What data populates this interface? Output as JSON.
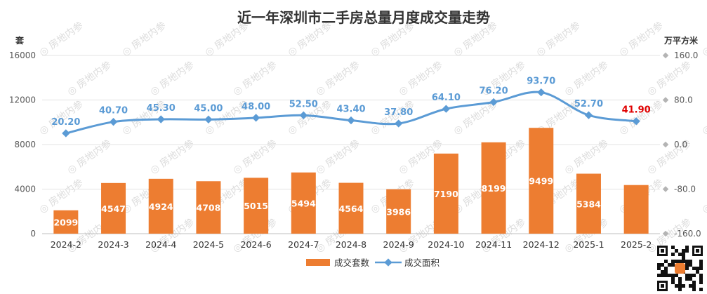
{
  "chart_data": {
    "type": "bar+line",
    "title": "近一年深圳市二手房总量月度成交量走势",
    "left_axis_unit": "套",
    "right_axis_unit": "万平方米",
    "categories": [
      "2024-2",
      "2024-3",
      "2024-4",
      "2024-5",
      "2024-6",
      "2024-7",
      "2024-8",
      "2024-9",
      "2024-10",
      "2024-11",
      "2024-12",
      "2025-1",
      "2025-2"
    ],
    "left_ylim": [
      0,
      16000
    ],
    "left_ticks": [
      "0",
      "4000",
      "8000",
      "12000",
      "16000"
    ],
    "right_ylim": [
      -160,
      160
    ],
    "right_ticks": [
      "-160.0",
      "-80.0",
      "0.0",
      "80.0",
      "160.0"
    ],
    "series": [
      {
        "name": "成交套数",
        "kind": "bar",
        "axis": "left",
        "color": "#ED7D31",
        "values": [
          2099,
          4547,
          4924,
          4708,
          5015,
          5494,
          4564,
          3986,
          7190,
          8199,
          9499,
          5384,
          4365
        ],
        "labels": [
          "2099",
          "4547",
          "4924",
          "4708",
          "5015",
          "5494",
          "4564",
          "3986",
          "7190",
          "8199",
          "9499",
          "5384",
          "4365"
        ]
      },
      {
        "name": "成交面积",
        "kind": "line",
        "axis": "right",
        "color": "#5B9BD5",
        "values": [
          20.2,
          40.7,
          45.3,
          45.0,
          48.0,
          52.5,
          43.4,
          37.8,
          64.1,
          76.2,
          93.7,
          52.7,
          41.9
        ],
        "labels": [
          "20.20",
          "40.70",
          "45.30",
          "45.00",
          "48.00",
          "52.50",
          "43.40",
          "37.80",
          "64.10",
          "76.20",
          "93.70",
          "52.70",
          "41.90"
        ]
      }
    ],
    "highlight_color": "#E00000",
    "highlight_index": 12,
    "grid": true,
    "legend_position": "bottom-center"
  },
  "watermark": "房地内参"
}
